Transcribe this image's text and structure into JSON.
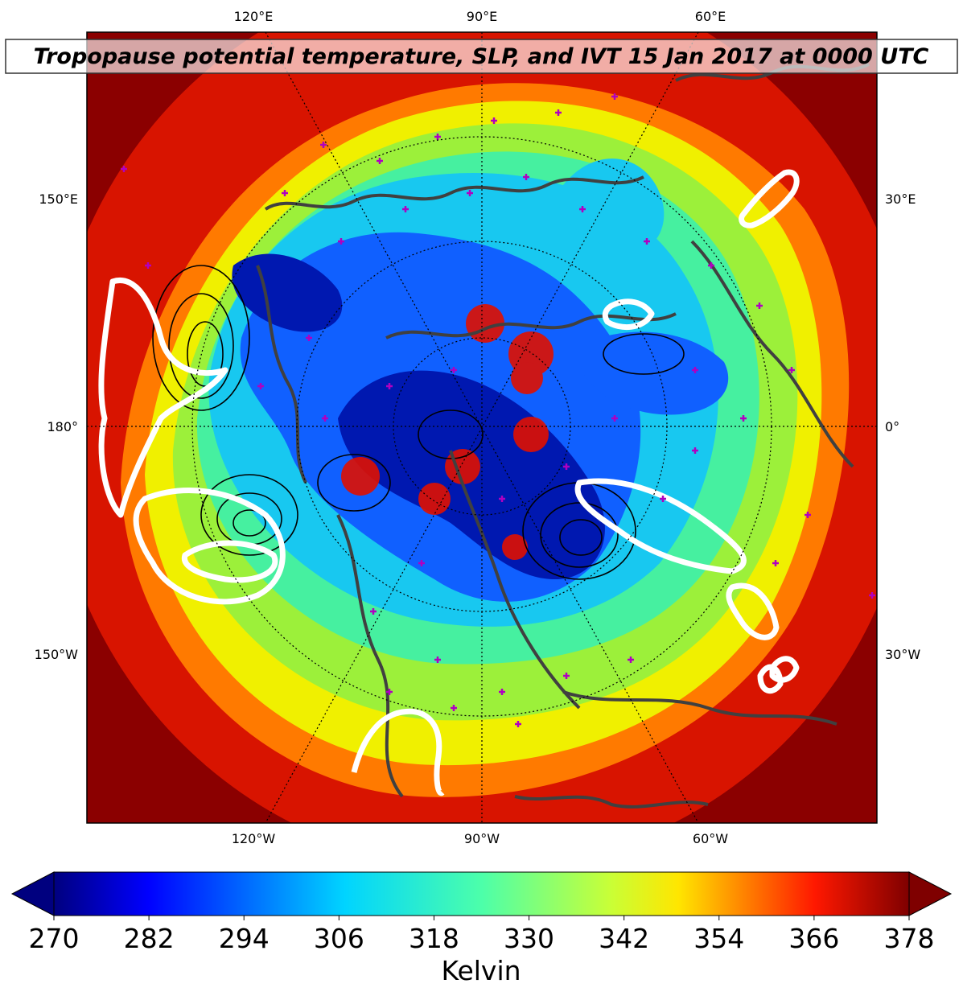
{
  "title": "Tropopause potential temperature, SLP, and IVT 15 Jan 2017 at 0000 UTC",
  "map": {
    "projection": "north-polar-stereographic",
    "top_longitude_labels": [
      "120°E",
      "90°E",
      "60°E"
    ],
    "bottom_longitude_labels": [
      "120°W",
      "90°W",
      "60°W"
    ],
    "left_longitude_labels": [
      "150°E",
      "180°",
      "150°W"
    ],
    "right_longitude_labels": [
      "30°E",
      "0°",
      "30°W"
    ],
    "field": "tropopause potential temperature",
    "overlays": [
      "SLP contours (black)",
      "IVT contours (white)",
      "coastlines (dark gray)",
      "station markers (magenta +)"
    ]
  },
  "colorbar": {
    "colormap": "jet",
    "min": 270,
    "max": 378,
    "ticks": [
      "270",
      "282",
      "294",
      "306",
      "318",
      "330",
      "342",
      "354",
      "366",
      "378"
    ],
    "label": "Kelvin",
    "extend": "both"
  },
  "colors": {
    "ocean_high": "#8b0000",
    "ring_red": "#e01000",
    "ring_orange": "#ff7a00",
    "ring_yellow": "#f0f000",
    "ring_lime": "#9cf03a",
    "ring_green": "#46f0a0",
    "core_cyan": "#18c8f0",
    "core_blue": "#1060ff",
    "core_navy": "#0018b0",
    "coast": "#404040",
    "ivt": "#ffffff",
    "station": "#b000c0"
  }
}
